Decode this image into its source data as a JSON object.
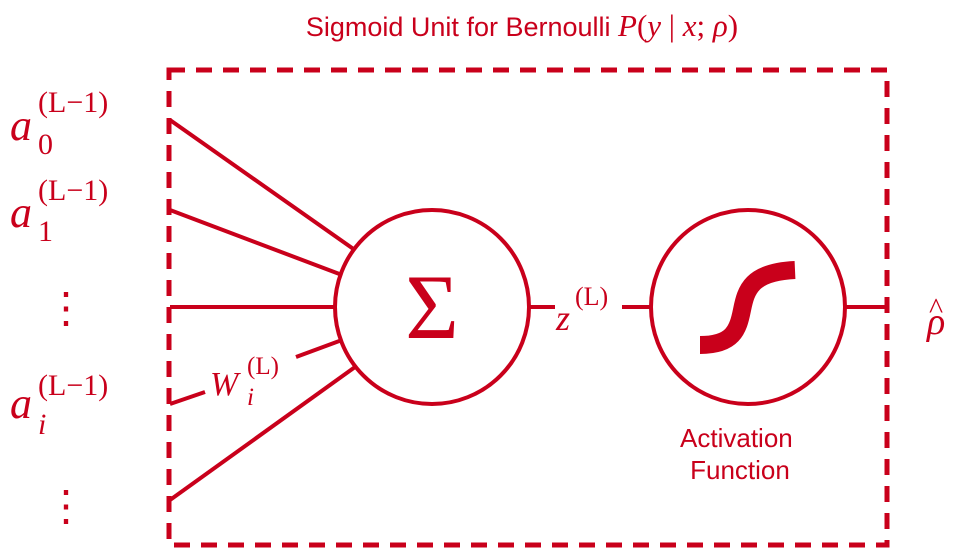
{
  "colors": {
    "accent": "#c9001b",
    "background": "#ffffff"
  },
  "title": {
    "prefix": "Sigmoid Unit for Bernoulli ",
    "P": "P",
    "open": "(",
    "y": "y",
    "bar": " | ",
    "x": "x",
    "semi": "; ",
    "rho": "ρ",
    "close": ")"
  },
  "inputs": [
    {
      "base": "a",
      "sub": "0",
      "sup": "(L−1)"
    },
    {
      "base": "a",
      "sub": "1",
      "sup": "(L−1)"
    },
    {
      "ellipsis": "⋮"
    },
    {
      "base": "a",
      "sub": "i",
      "sup": "(L−1)"
    },
    {
      "ellipsis": "⋮"
    }
  ],
  "weight": {
    "base": "W",
    "sub": "i",
    "sup": "(L)"
  },
  "sum_node": {
    "symbol": "Σ"
  },
  "preactivation": {
    "base": "z",
    "sup": "(L)"
  },
  "activation_node": {
    "icon": "sigmoid-curve-icon",
    "label_line1": "Activation",
    "label_line2": "Function"
  },
  "output": {
    "base": "ρ",
    "hat": "^"
  }
}
